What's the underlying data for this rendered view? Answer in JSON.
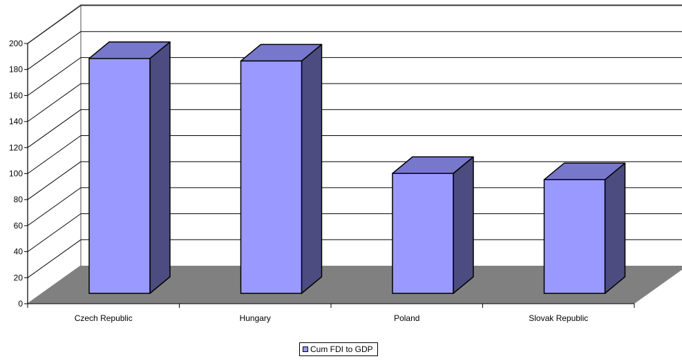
{
  "chart_data": {
    "type": "bar",
    "style": "3d-column",
    "categories": [
      "Czech Republic",
      "Hungary",
      "Poland",
      "Slovak Republic"
    ],
    "series": [
      {
        "name": "Cum FDI to GDP",
        "values": [
          188,
          186,
          96,
          91
        ]
      }
    ],
    "title": "",
    "xlabel": "",
    "ylabel": "",
    "ylim": [
      0,
      200
    ],
    "yticks": [
      0,
      20,
      40,
      60,
      80,
      100,
      120,
      140,
      160,
      180,
      200
    ],
    "grid": true,
    "legend_position": "bottom",
    "colors": {
      "bar_front": "#9999FF",
      "bar_side": "#4C4C80",
      "bar_top": "#7777CC",
      "floor": "#808080",
      "gridline": "#000000",
      "wall_border": "#888888"
    }
  },
  "legend": {
    "label": "Cum FDI to GDP"
  }
}
